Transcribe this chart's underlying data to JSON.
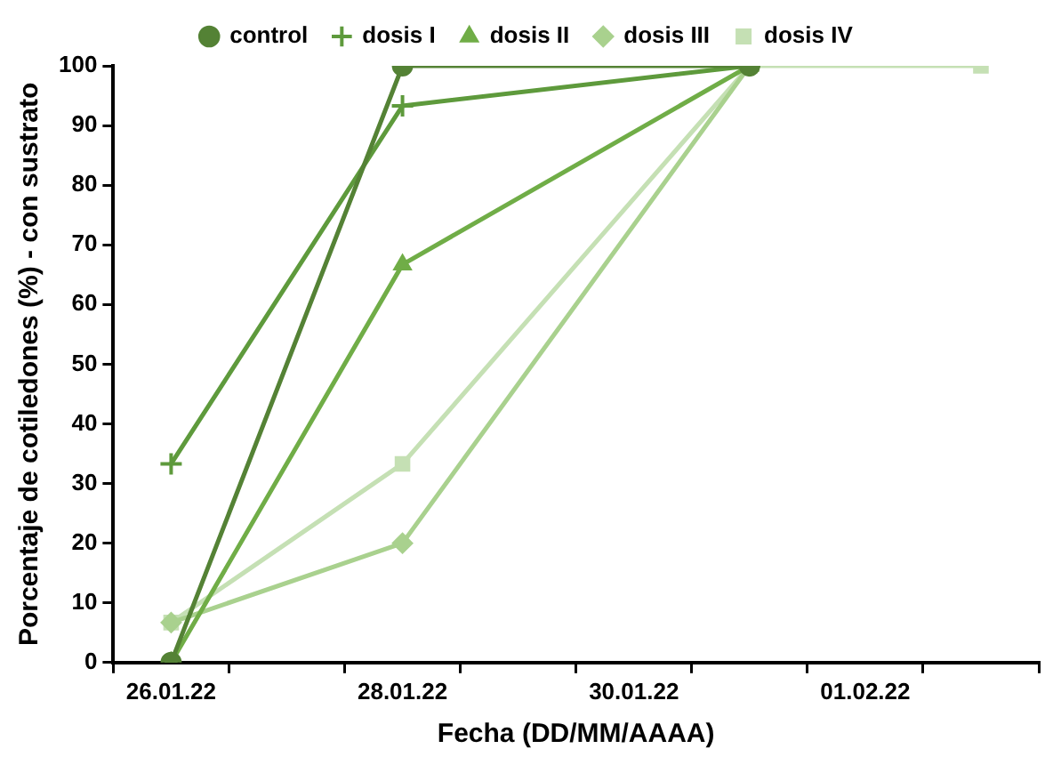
{
  "chart_data": {
    "type": "line",
    "xlabel": "Fecha (DD/MM/AAAA)",
    "ylabel": "Porcentaje de cotiledones (%) - con sustrato",
    "xlim": [
      "--01-25T12:00",
      "--02-02T12:00"
    ],
    "xticks": [
      {
        "value": "--01-25T12:00",
        "label": null
      },
      {
        "value": "--01-26T12:00",
        "label": null
      },
      {
        "value": "--01-27T12:00",
        "label": null
      },
      {
        "value": "--01-28T12:00",
        "label": null
      },
      {
        "value": "--01-29T12:00",
        "label": null
      },
      {
        "value": "--01-30T12:00",
        "label": null
      },
      {
        "value": "--01-31T12:00",
        "label": null
      },
      {
        "value": "--02-01T12:00",
        "label": null
      },
      {
        "value": "--02-02T12:00",
        "label": null
      },
      {
        "value": "--01-26",
        "label": "26.01.22"
      },
      {
        "value": "--01-28",
        "label": "28.01.22"
      },
      {
        "value": "--01-30",
        "label": "30.01.22"
      },
      {
        "value": "--02-01",
        "label": "01.02.22"
      }
    ],
    "ylim": [
      0,
      100
    ],
    "yticks": [
      0,
      10,
      20,
      30,
      40,
      50,
      60,
      70,
      80,
      90,
      100
    ],
    "grid": false,
    "legend": "top",
    "series": [
      {
        "name": "control",
        "color": "#548235",
        "marker": "circle",
        "x": [
          "--01-26",
          "--01-28",
          "--01-31"
        ],
        "values": [
          0,
          100,
          100
        ]
      },
      {
        "name": "dosis I",
        "color": "#5e9a3c",
        "marker": "cross",
        "x": [
          "--01-26",
          "--01-28",
          "--01-31"
        ],
        "values": [
          33.3,
          93.3,
          100
        ]
      },
      {
        "name": "dosis II",
        "color": "#70ad47",
        "marker": "triangle",
        "x": [
          "--01-26",
          "--01-28",
          "--01-31"
        ],
        "values": [
          0,
          66.7,
          100
        ]
      },
      {
        "name": "dosis III",
        "color": "#a9d18e",
        "marker": "diamond",
        "x": [
          "--01-26",
          "--01-28",
          "--01-31"
        ],
        "values": [
          6.7,
          20,
          100
        ]
      },
      {
        "name": "dosis IV",
        "color": "#c5e0b4",
        "marker": "square",
        "x": [
          "--01-26",
          "--01-28",
          "--01-31",
          "--02-02"
        ],
        "values": [
          6.7,
          33.3,
          100,
          100
        ]
      }
    ]
  }
}
